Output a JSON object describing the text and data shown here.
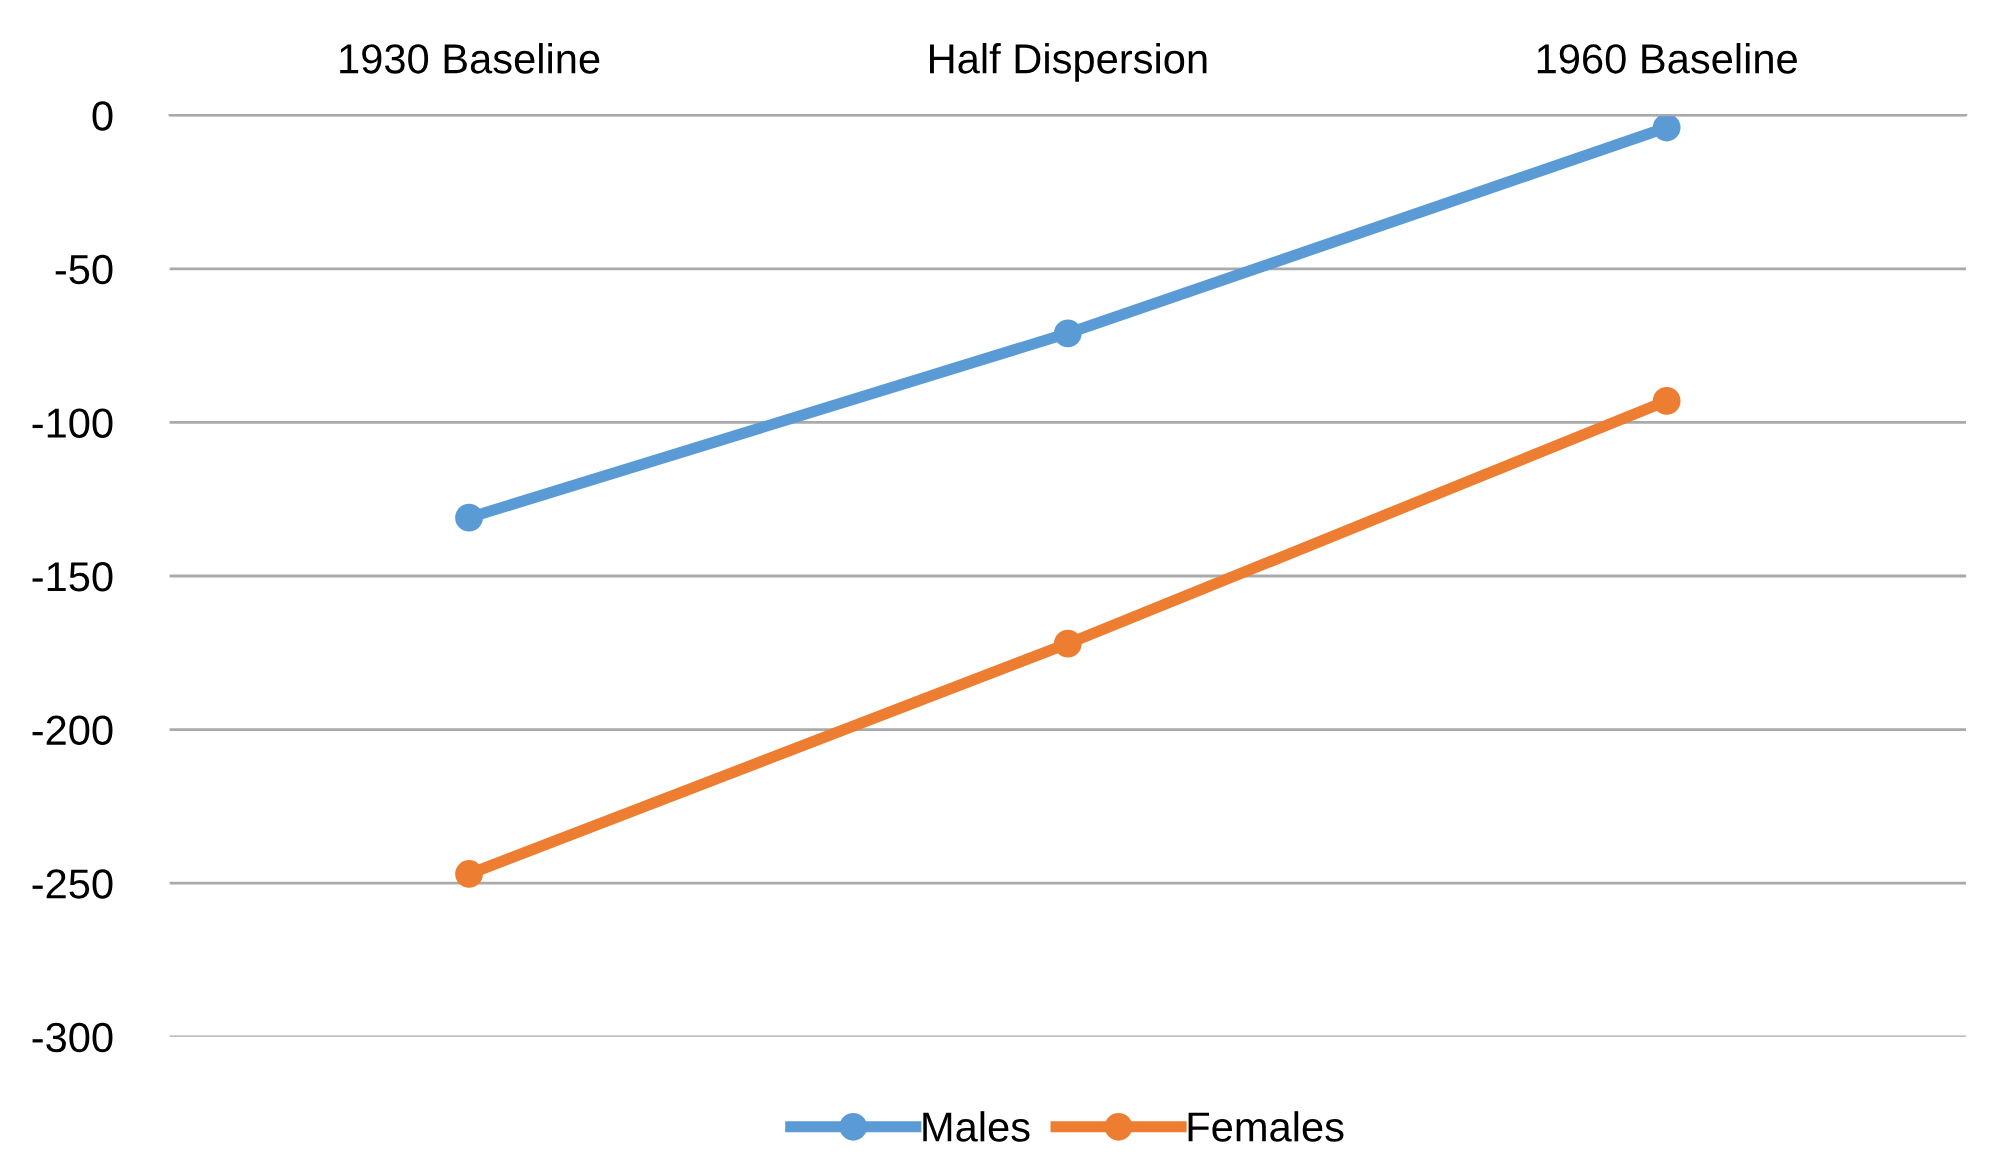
{
  "chart_data": {
    "type": "line",
    "categories": [
      "1930 Baseline",
      "Half Dispersion",
      "1960 Baseline"
    ],
    "series": [
      {
        "name": "Males",
        "color": "#5b9bd5",
        "values": [
          -131,
          -71,
          -4
        ]
      },
      {
        "name": "Females",
        "color": "#ed7d31",
        "values": [
          -247,
          -172,
          -93
        ]
      }
    ],
    "ylim": [
      -300,
      0
    ],
    "yticks": [
      {
        "value": -300,
        "label": "-300"
      },
      {
        "value": -250,
        "label": "-250"
      },
      {
        "value": -200,
        "label": "-200"
      },
      {
        "value": -150,
        "label": "-150"
      },
      {
        "value": -100,
        "label": "-100"
      },
      {
        "value": -50,
        "label": "-50"
      },
      0
    ],
    "grid": "y",
    "legend": "bottom",
    "marker": "circle",
    "line_style": "solid"
  }
}
